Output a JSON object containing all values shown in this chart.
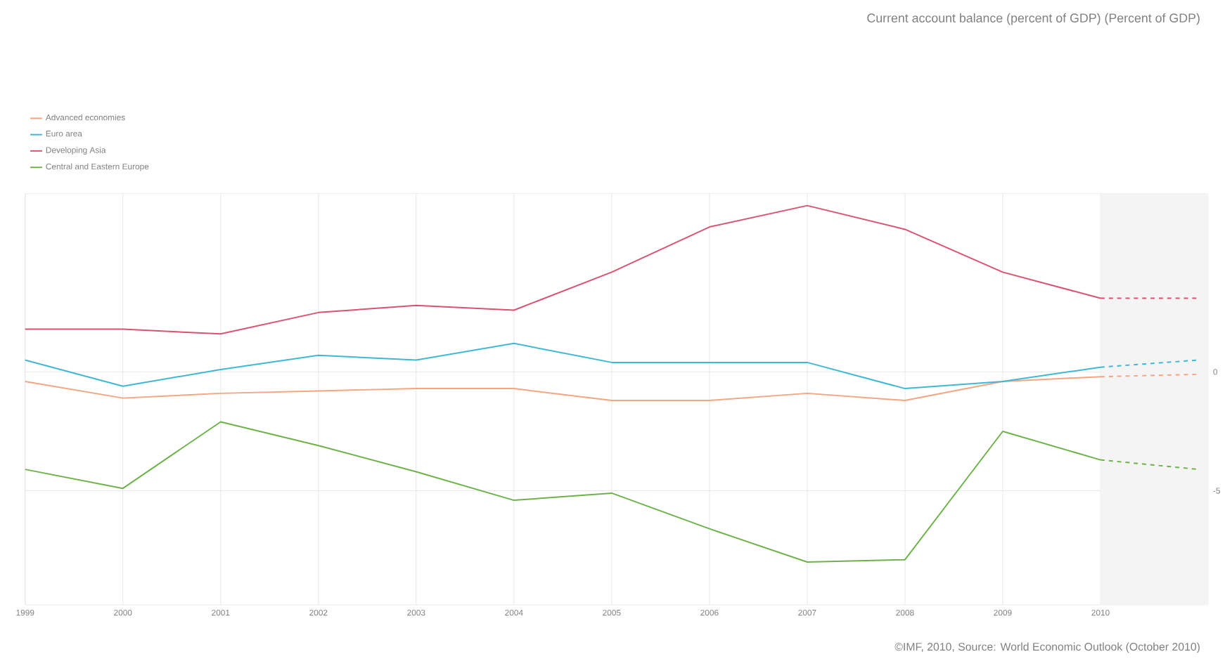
{
  "chart_data": {
    "type": "line",
    "title": "Current account balance (percent of GDP) (Percent of GDP)",
    "annotations": [
      "©IMF, 2010, Source: World Economic Outlook (October 2010)"
    ],
    "xlim": [
      1999,
      2011.1
    ],
    "xticks": [
      {
        "value": 1999,
        "label": "1999"
      },
      2000,
      2001,
      2002,
      2003,
      2004,
      2005,
      2006,
      2007,
      2008,
      2009,
      2010,
      {
        "value": 2011,
        "label": null
      }
    ],
    "ylim": [
      -9.8,
      7.5
    ],
    "yticks": [
      -5,
      0
    ],
    "grid": true,
    "legend": "top left",
    "marker": "none",
    "bands": [
      {
        "axis": "x",
        "from": 2010,
        "to": 2011.1,
        "color": "#f4f4f4"
      }
    ],
    "series": [
      {
        "name": "Advanced economies",
        "color": "#f4a582",
        "x": [
          1999,
          2000,
          2001,
          2002,
          2003,
          2004,
          2005,
          2006,
          2007,
          2008,
          2009,
          2010
        ],
        "values": [
          -0.4,
          -1.1,
          -0.9,
          -0.8,
          -0.7,
          -0.7,
          -1.2,
          -1.2,
          -0.9,
          -1.2,
          -0.4,
          -0.2
        ]
      },
      {
        "name": "Euro area",
        "color": "#3fb8d6",
        "x": [
          1999,
          2000,
          2001,
          2002,
          2003,
          2004,
          2005,
          2006,
          2007,
          2008,
          2009,
          2010
        ],
        "values": [
          0.5,
          -0.6,
          0.1,
          0.7,
          0.5,
          1.2,
          0.4,
          0.4,
          0.4,
          -0.7,
          -0.4,
          0.2
        ]
      },
      {
        "name": "Developing Asia",
        "color": "#d9536f",
        "x": [
          1999,
          2000,
          2001,
          2002,
          2003,
          2004,
          2005,
          2006,
          2007,
          2008,
          2009,
          2010
        ],
        "values": [
          1.8,
          1.8,
          1.6,
          2.5,
          2.8,
          2.6,
          4.2,
          6.1,
          7.0,
          6.0,
          4.2,
          3.1
        ]
      },
      {
        "name": "Central and Eastern Europe",
        "color": "#6db34a",
        "x": [
          1999,
          2000,
          2001,
          2002,
          2003,
          2004,
          2005,
          2006,
          2007,
          2008,
          2009,
          2010
        ],
        "values": [
          -4.1,
          -4.9,
          -2.1,
          -3.1,
          -4.2,
          -5.4,
          -5.1,
          -6.6,
          -8.0,
          -7.9,
          -2.5,
          -3.7
        ]
      },
      {
        "color": "#f4a582",
        "line_style": "dashed",
        "x": [
          2010,
          2011
        ],
        "values": [
          -0.2,
          -0.1
        ]
      },
      {
        "color": "#3fb8d6",
        "line_style": "dashed",
        "x": [
          2010,
          2011
        ],
        "values": [
          0.2,
          0.5
        ]
      },
      {
        "color": "#d9536f",
        "line_style": "dashed",
        "x": [
          2010,
          2011
        ],
        "values": [
          3.1,
          3.1
        ]
      },
      {
        "color": "#6db34a",
        "line_style": "dashed",
        "x": [
          2010,
          2011
        ],
        "values": [
          -3.7,
          -4.1
        ]
      }
    ]
  }
}
